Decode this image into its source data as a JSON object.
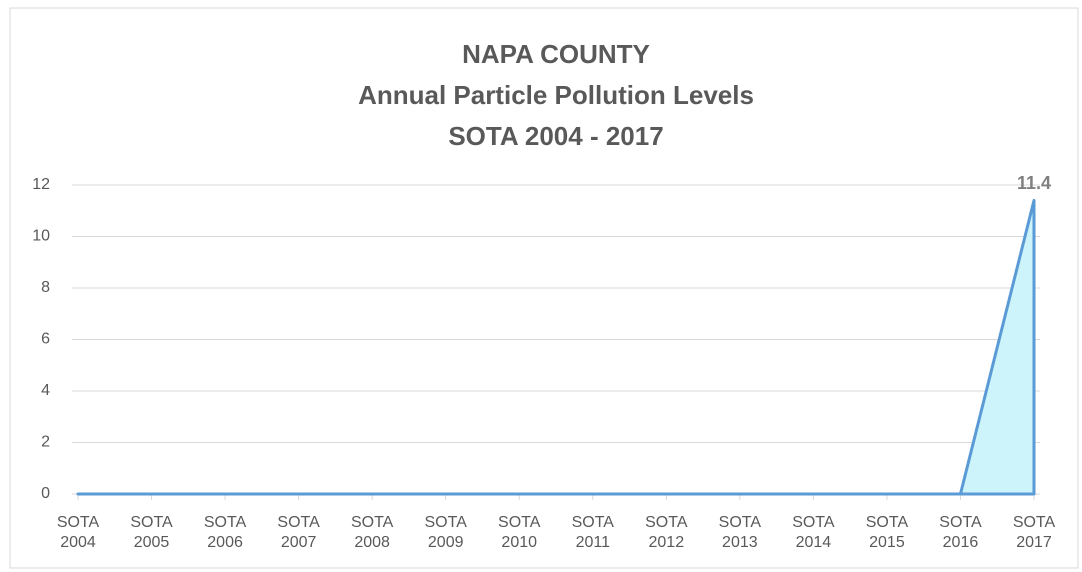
{
  "chart_data": {
    "type": "area",
    "title_lines": [
      "NAPA COUNTY",
      "Annual Particle Pollution Levels",
      "SOTA 2004 - 2017"
    ],
    "categories": [
      "SOTA 2004",
      "SOTA 2005",
      "SOTA 2006",
      "SOTA 2007",
      "SOTA 2008",
      "SOTA 2009",
      "SOTA 2010",
      "SOTA 2011",
      "SOTA 2012",
      "SOTA 2013",
      "SOTA 2014",
      "SOTA 2015",
      "SOTA 2016",
      "SOTA 2017"
    ],
    "series": [
      {
        "name": "Annual Particle Pollution",
        "color": "#5b9bd5",
        "fill": "#cdf3fb",
        "values": [
          0,
          0,
          0,
          0,
          0,
          0,
          0,
          0,
          0,
          0,
          0,
          0,
          0,
          11.4
        ]
      }
    ],
    "data_label_index": 13,
    "ylim": [
      0,
      12
    ],
    "yticks": [
      0,
      2,
      4,
      6,
      8,
      10,
      12
    ],
    "grid": true
  }
}
